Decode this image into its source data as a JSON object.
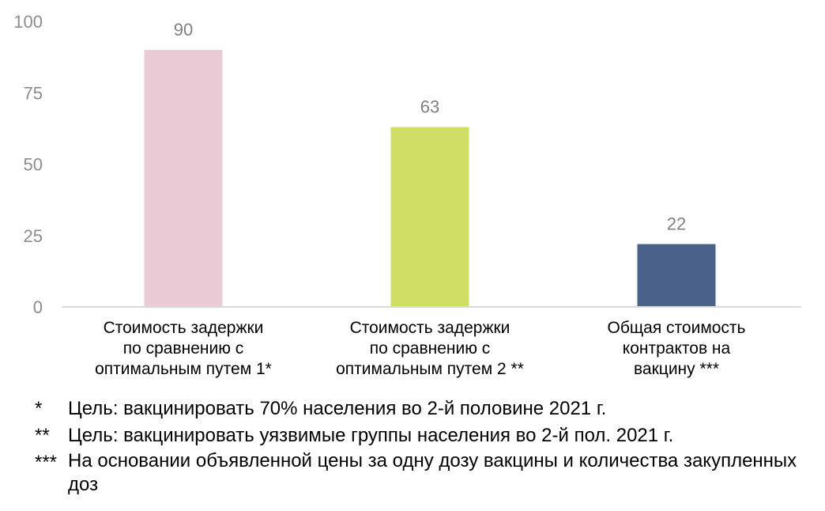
{
  "chart_data": {
    "type": "bar",
    "categories": [
      "Стоимость задержки\nпо сравнению с\nоптимальным путем 1*",
      "Стоимость задержки\nпо сравнению с\nоптимальным путем 2 **",
      "Общая стоимость\nконтрактов на\nвакцину ***"
    ],
    "values": [
      90,
      63,
      22
    ],
    "data_labels": [
      "90",
      "63",
      "22"
    ],
    "colors": [
      "#ebcbd6",
      "#d1de66",
      "#4a6289"
    ],
    "yticks": [
      "0",
      "25",
      "50",
      "75",
      "100"
    ],
    "ylim": [
      0,
      100
    ],
    "grid": false,
    "title": "",
    "xlabel": "",
    "ylabel": ""
  },
  "footnotes": [
    {
      "mark": "*",
      "text": "Цель: вакцинировать 70% населения во 2-й половине 2021 г."
    },
    {
      "mark": "**",
      "text": "Цель: вакцинировать уязвимые группы населения во 2-й пол. 2021 г."
    },
    {
      "mark": "***",
      "text": "На основании объявленной цены за одну дозу вакцины и количества закупленных доз"
    }
  ]
}
